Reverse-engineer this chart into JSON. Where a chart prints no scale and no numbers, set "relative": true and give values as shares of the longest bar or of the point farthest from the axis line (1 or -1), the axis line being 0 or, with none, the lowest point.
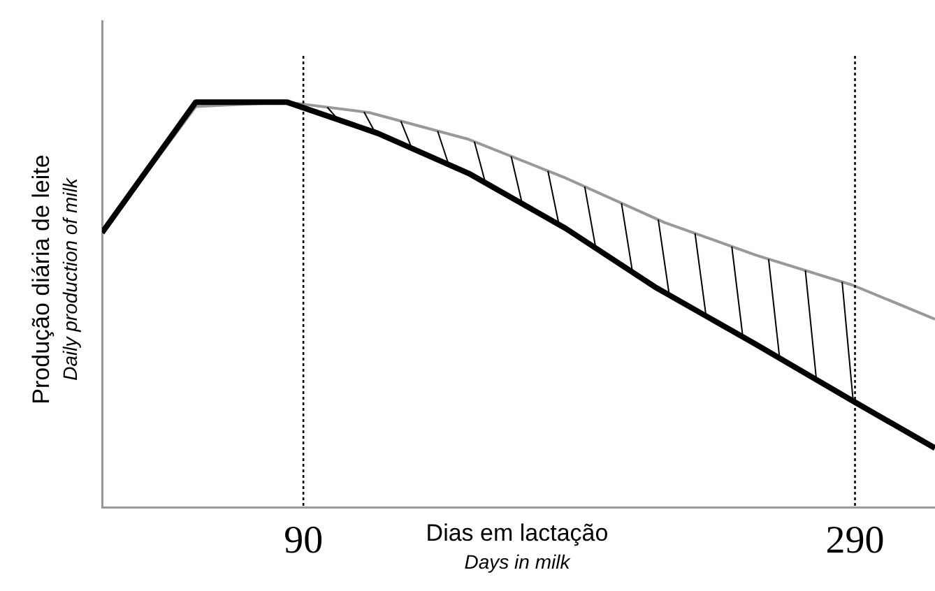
{
  "chart_data": {
    "type": "line",
    "relative": true,
    "xlabel": "Dias em lactação",
    "ylabel": "Produção diária de leite",
    "annotations": [
      "Days in milk",
      "Daily production of milk"
    ],
    "xlim": [
      17,
      319
    ],
    "xticks": [
      90,
      290
    ],
    "series": [
      {
        "color": "#000000",
        "x": [
          17,
          51,
          84,
          117,
          150,
          185,
          218,
          254,
          289,
          319
        ],
        "values": [
          0.678,
          1,
          1,
          0.923,
          0.824,
          0.689,
          0.542,
          0.403,
          0.264,
          0.147
        ]
      },
      {
        "color": "#999999",
        "x": [
          17,
          51,
          84,
          114,
          150,
          185,
          221,
          254,
          289,
          319
        ],
        "values": [
          0.678,
          0.989,
          1,
          0.974,
          0.908,
          0.813,
          0.703,
          0.623,
          0.549,
          0.465
        ]
      }
    ],
    "ref_lines": [
      {
        "axis": "x",
        "value": 90,
        "line_style": "dotted",
        "color": "#000000"
      },
      {
        "axis": "x",
        "value": 290,
        "line_style": "dotted",
        "color": "#000000"
      }
    ],
    "grid": false,
    "legend": false,
    "marker": "none",
    "line_style": "solid"
  }
}
